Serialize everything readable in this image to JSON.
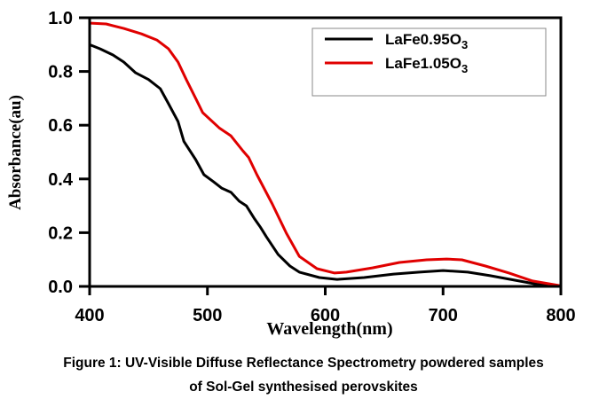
{
  "chart_data": {
    "type": "line",
    "title": "",
    "xlabel": "Wavelength(nm)",
    "ylabel": "Absorbance(au)",
    "xlim": [
      400,
      800
    ],
    "ylim": [
      0.0,
      1.0
    ],
    "x_ticks": [
      400,
      500,
      600,
      700,
      800
    ],
    "x_tick_labels": [
      "400",
      "500",
      "600",
      "700",
      "800"
    ],
    "y_ticks": [
      0.0,
      0.2,
      0.4,
      0.6,
      0.8,
      1.0
    ],
    "y_tick_labels": [
      "0.0",
      "0.2",
      "0.4",
      "0.6",
      "0.8",
      "1.0"
    ],
    "grid": false,
    "legend": {
      "position": "top-right",
      "frame": true
    },
    "series": [
      {
        "name": "LaFe0.95O3",
        "label_main": "LaFe0.95O",
        "label_sub": "3",
        "color": "#000000",
        "points": [
          [
            401,
            0.898
          ],
          [
            409,
            0.884
          ],
          [
            420,
            0.861
          ],
          [
            429,
            0.835
          ],
          [
            439,
            0.795
          ],
          [
            450,
            0.77
          ],
          [
            460,
            0.736
          ],
          [
            467,
            0.68
          ],
          [
            475,
            0.614
          ],
          [
            480,
            0.54
          ],
          [
            490,
            0.472
          ],
          [
            497,
            0.416
          ],
          [
            505,
            0.39
          ],
          [
            512,
            0.366
          ],
          [
            520,
            0.35
          ],
          [
            527,
            0.317
          ],
          [
            533,
            0.3
          ],
          [
            540,
            0.251
          ],
          [
            545,
            0.22
          ],
          [
            550,
            0.185
          ],
          [
            560,
            0.119
          ],
          [
            570,
            0.076
          ],
          [
            578,
            0.053
          ],
          [
            595,
            0.033
          ],
          [
            610,
            0.026
          ],
          [
            633,
            0.033
          ],
          [
            658,
            0.046
          ],
          [
            680,
            0.053
          ],
          [
            700,
            0.059
          ],
          [
            721,
            0.053
          ],
          [
            740,
            0.04
          ],
          [
            761,
            0.023
          ],
          [
            781,
            0.007
          ],
          [
            799,
            0.003
          ]
        ]
      },
      {
        "name": "LaFe1.05O3",
        "label_main": "LaFe1.05O",
        "label_sub": "3",
        "color": "#e00000",
        "points": [
          [
            401,
            0.98
          ],
          [
            414,
            0.977
          ],
          [
            429,
            0.96
          ],
          [
            444,
            0.94
          ],
          [
            457,
            0.917
          ],
          [
            467,
            0.884
          ],
          [
            475,
            0.835
          ],
          [
            482,
            0.77
          ],
          [
            490,
            0.7
          ],
          [
            496,
            0.647
          ],
          [
            510,
            0.59
          ],
          [
            520,
            0.56
          ],
          [
            530,
            0.505
          ],
          [
            535,
            0.48
          ],
          [
            542,
            0.416
          ],
          [
            555,
            0.307
          ],
          [
            567,
            0.198
          ],
          [
            578,
            0.112
          ],
          [
            593,
            0.066
          ],
          [
            608,
            0.05
          ],
          [
            618,
            0.053
          ],
          [
            640,
            0.069
          ],
          [
            663,
            0.089
          ],
          [
            686,
            0.099
          ],
          [
            703,
            0.102
          ],
          [
            716,
            0.099
          ],
          [
            736,
            0.076
          ],
          [
            756,
            0.05
          ],
          [
            776,
            0.02
          ],
          [
            799,
            0.003
          ]
        ]
      }
    ]
  },
  "caption": {
    "line1": "Figure 1: UV-Visible Diffuse Reflectance Spectrometry powdered samples",
    "line2": "of Sol-Gel synthesised perovskites"
  }
}
